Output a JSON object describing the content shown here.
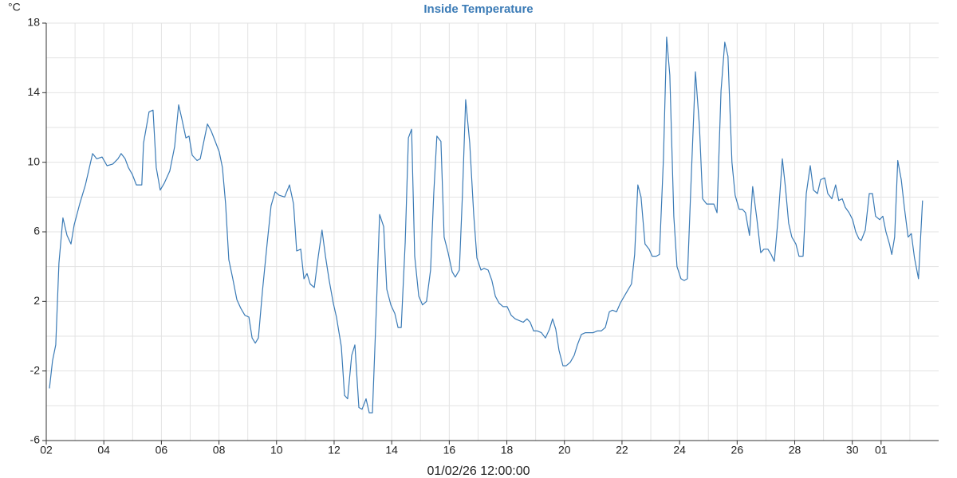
{
  "chart_data": {
    "type": "line",
    "title": "Inside Temperature",
    "y_label": "°C",
    "x_label": "01/02/26 12:00:00",
    "color": "#3b7bb6",
    "grid": true,
    "xlim": [
      0,
      31
    ],
    "xticks": [
      {
        "value": 0,
        "label": "02"
      },
      {
        "value": 2,
        "label": "04"
      },
      {
        "value": 4,
        "label": "06"
      },
      {
        "value": 6,
        "label": "08"
      },
      {
        "value": 8,
        "label": "10"
      },
      {
        "value": 10,
        "label": "12"
      },
      {
        "value": 12,
        "label": "14"
      },
      {
        "value": 14,
        "label": "16"
      },
      {
        "value": 16,
        "label": "18"
      },
      {
        "value": 18,
        "label": "20"
      },
      {
        "value": 20,
        "label": "22"
      },
      {
        "value": 22,
        "label": "24"
      },
      {
        "value": 24,
        "label": "26"
      },
      {
        "value": 26,
        "label": "28"
      },
      {
        "value": 28,
        "label": "30"
      },
      {
        "value": 29,
        "label": "01"
      }
    ],
    "xgrid_minor": [
      1,
      3,
      5,
      7,
      9,
      11,
      13,
      15,
      17,
      19,
      21,
      23,
      25,
      27,
      30
    ],
    "ylim": [
      -6,
      18
    ],
    "yticks": [
      -6,
      -2,
      2,
      6,
      10,
      14,
      18
    ],
    "ygrid_minor": [
      -4,
      0,
      4,
      8,
      12,
      16
    ],
    "x": [
      0.11,
      0.22,
      0.33,
      0.44,
      0.58,
      0.72,
      0.86,
      0.97,
      1.16,
      1.36,
      1.61,
      1.75,
      1.94,
      2.11,
      2.31,
      2.49,
      2.6,
      2.74,
      2.85,
      2.99,
      3.13,
      3.32,
      3.38,
      3.57,
      3.71,
      3.82,
      3.96,
      4.1,
      4.29,
      4.46,
      4.6,
      4.71,
      4.85,
      4.96,
      5.07,
      5.24,
      5.35,
      5.6,
      5.73,
      5.87,
      6.01,
      6.12,
      6.23,
      6.34,
      6.48,
      6.62,
      6.76,
      6.9,
      7.04,
      7.15,
      7.26,
      7.37,
      7.51,
      7.67,
      7.81,
      7.95,
      8.09,
      8.28,
      8.45,
      8.59,
      8.7,
      8.84,
      8.95,
      9.06,
      9.17,
      9.31,
      9.45,
      9.58,
      9.7,
      9.83,
      9.97,
      10.08,
      10.25,
      10.36,
      10.47,
      10.61,
      10.72,
      10.86,
      10.97,
      11.11,
      11.22,
      11.33,
      11.47,
      11.58,
      11.72,
      11.83,
      11.97,
      12.11,
      12.22,
      12.33,
      12.47,
      12.58,
      12.69,
      12.8,
      12.94,
      13.07,
      13.21,
      13.35,
      13.46,
      13.57,
      13.71,
      13.82,
      13.96,
      14.1,
      14.21,
      14.35,
      14.46,
      14.57,
      14.71,
      14.85,
      14.96,
      15.1,
      15.21,
      15.35,
      15.48,
      15.6,
      15.73,
      15.87,
      16.01,
      16.15,
      16.29,
      16.43,
      16.57,
      16.7,
      16.81,
      16.93,
      17.06,
      17.2,
      17.34,
      17.48,
      17.59,
      17.7,
      17.81,
      17.95,
      18.06,
      18.2,
      18.34,
      18.45,
      18.59,
      18.73,
      18.86,
      19.0,
      19.14,
      19.28,
      19.42,
      19.56,
      19.67,
      19.81,
      19.94,
      20.08,
      20.22,
      20.33,
      20.44,
      20.55,
      20.66,
      20.8,
      20.94,
      21.05,
      21.19,
      21.3,
      21.44,
      21.55,
      21.66,
      21.8,
      21.91,
      22.05,
      22.16,
      22.27,
      22.41,
      22.55,
      22.69,
      22.8,
      22.94,
      23.05,
      23.19,
      23.3,
      23.44,
      23.57,
      23.68,
      23.82,
      23.93,
      24.07,
      24.18,
      24.29,
      24.43,
      24.54,
      24.68,
      24.82,
      24.93,
      25.07,
      25.18,
      25.29,
      25.43,
      25.57,
      25.68,
      25.79,
      25.9,
      26.04,
      26.15,
      26.29,
      26.4,
      26.54,
      26.65,
      26.79,
      26.9,
      27.04,
      27.15,
      27.29,
      27.42,
      27.53,
      27.65,
      27.76,
      27.89,
      28.01,
      28.12,
      28.23,
      28.31,
      28.45,
      28.59,
      28.7,
      28.81,
      28.95,
      29.06,
      29.17,
      29.29,
      29.37,
      29.47,
      29.58,
      29.7,
      29.81,
      29.94,
      30.05,
      30.16,
      30.3,
      30.44
    ],
    "values": [
      -3.0,
      -1.4,
      -0.5,
      4.2,
      6.8,
      5.8,
      5.3,
      6.4,
      7.6,
      8.7,
      10.5,
      10.2,
      10.3,
      9.8,
      9.9,
      10.2,
      10.5,
      10.2,
      9.7,
      9.3,
      8.7,
      8.7,
      11.1,
      12.9,
      13.0,
      9.7,
      8.4,
      8.8,
      9.5,
      10.9,
      13.3,
      12.5,
      11.4,
      11.5,
      10.4,
      10.1,
      10.2,
      12.2,
      11.8,
      11.2,
      10.6,
      9.7,
      7.6,
      4.4,
      3.3,
      2.1,
      1.6,
      1.2,
      1.1,
      -0.1,
      -0.4,
      -0.1,
      2.6,
      5.3,
      7.5,
      8.3,
      8.1,
      8.0,
      8.7,
      7.6,
      4.9,
      5.0,
      3.3,
      3.6,
      3.0,
      2.8,
      4.6,
      6.1,
      4.6,
      3.2,
      1.9,
      1.1,
      -0.6,
      -3.4,
      -3.6,
      -1.1,
      -0.5,
      -4.1,
      -4.2,
      -3.6,
      -4.4,
      -4.4,
      1.7,
      7.0,
      6.3,
      2.7,
      1.8,
      1.3,
      0.5,
      0.5,
      5.4,
      11.4,
      11.9,
      4.6,
      2.3,
      1.8,
      2.0,
      3.8,
      8.2,
      11.5,
      11.2,
      5.7,
      4.8,
      3.7,
      3.4,
      3.8,
      8.3,
      13.6,
      11.1,
      7.0,
      4.5,
      3.8,
      3.9,
      3.8,
      3.2,
      2.3,
      1.9,
      1.7,
      1.7,
      1.2,
      1.0,
      0.9,
      0.8,
      1.0,
      0.8,
      0.3,
      0.3,
      0.2,
      -0.1,
      0.4,
      1.0,
      0.4,
      -0.8,
      -1.7,
      -1.7,
      -1.5,
      -1.1,
      -0.5,
      0.1,
      0.2,
      0.2,
      0.2,
      0.3,
      0.3,
      0.5,
      1.4,
      1.5,
      1.4,
      1.9,
      2.3,
      2.7,
      3.0,
      4.7,
      8.7,
      8.0,
      5.3,
      5.0,
      4.6,
      4.6,
      4.7,
      10.2,
      17.2,
      15.0,
      6.9,
      4.0,
      3.3,
      3.2,
      3.3,
      9.3,
      15.2,
      12.1,
      7.9,
      7.6,
      7.6,
      7.6,
      7.1,
      14.1,
      16.9,
      16.1,
      10.0,
      8.1,
      7.3,
      7.3,
      7.1,
      5.8,
      8.6,
      6.8,
      4.8,
      5.0,
      5.0,
      4.7,
      4.3,
      6.9,
      10.2,
      8.5,
      6.5,
      5.7,
      5.3,
      4.6,
      4.6,
      8.2,
      9.8,
      8.4,
      8.2,
      9.0,
      9.1,
      8.2,
      7.9,
      8.7,
      7.8,
      7.9,
      7.4,
      7.1,
      6.7,
      6.0,
      5.6,
      5.5,
      6.1,
      8.2,
      8.2,
      6.9,
      6.7,
      6.9,
      6.0,
      5.3,
      4.7,
      5.7,
      10.1,
      9.0,
      7.4,
      5.7,
      5.9,
      4.5,
      3.3,
      7.8
    ]
  }
}
